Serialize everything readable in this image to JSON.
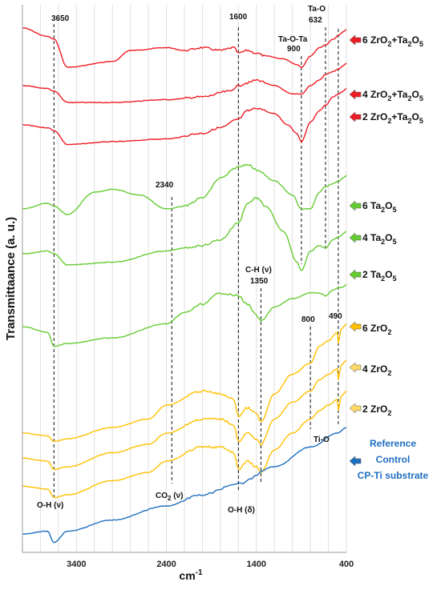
{
  "chart_data": {
    "type": "line",
    "title": "",
    "xlabel": "cm",
    "xlabel_sup": "-1",
    "ylabel": "Transmittaance (a. u.)",
    "xlim": [
      4000,
      400
    ],
    "xticks": [
      3400,
      2400,
      1400,
      400
    ],
    "grid": "vertical",
    "series": [
      {
        "name": "6 ZrO2+Ta2O5",
        "group": "zrta",
        "color": "#ee1c25",
        "x": [
          4000,
          3720,
          3650,
          3500,
          3000,
          2800,
          2400,
          2200,
          2000,
          1800,
          1650,
          1600,
          1500,
          1400,
          1300,
          1100,
          950,
          900,
          800,
          700,
          632,
          550,
          480,
          440,
          400
        ],
        "y": [
          4,
          10,
          12,
          32,
          28,
          20,
          18,
          20,
          18,
          20,
          18,
          22,
          20,
          22,
          24,
          26,
          30,
          32,
          24,
          18,
          16,
          12,
          9,
          7,
          5
        ]
      },
      {
        "name": "4 ZrO2+Ta2O5",
        "group": "zrta",
        "color": "#ee1c25",
        "x": [
          4000,
          3720,
          3650,
          3500,
          3000,
          2400,
          2000,
          1700,
          1600,
          1500,
          1400,
          1200,
          1000,
          900,
          800,
          700,
          632,
          550,
          480,
          440,
          400
        ],
        "y": [
          52,
          54,
          56,
          64,
          64,
          62,
          60,
          56,
          52,
          50,
          48,
          52,
          58,
          58,
          52,
          48,
          44,
          42,
          40,
          38,
          36
        ]
      },
      {
        "name": "2 ZrO2+Ta2O5",
        "group": "zrta",
        "color": "#ee1c25",
        "x": [
          4000,
          3720,
          3650,
          3500,
          3000,
          2400,
          2000,
          1800,
          1600,
          1500,
          1400,
          1200,
          1050,
          950,
          900,
          800,
          700,
          632,
          550,
          480,
          440,
          400
        ],
        "y": [
          80,
          82,
          84,
          94,
          92,
          90,
          86,
          82,
          76,
          70,
          68,
          72,
          80,
          86,
          92,
          78,
          70,
          66,
          60,
          58,
          56,
          54
        ]
      },
      {
        "name": "6 Ta2O5",
        "group": "ta",
        "color": "#66cc33",
        "x": [
          4000,
          3720,
          3650,
          3500,
          3200,
          3000,
          2700,
          2400,
          2200,
          2000,
          1800,
          1600,
          1500,
          1400,
          1200,
          1000,
          900,
          800,
          700,
          632,
          550,
          480,
          440,
          400
        ],
        "y": [
          140,
          136,
          138,
          144,
          128,
          126,
          130,
          140,
          138,
          132,
          118,
          110,
          108,
          112,
          120,
          130,
          140,
          140,
          128,
          124,
          122,
          120,
          118,
          116
        ]
      },
      {
        "name": "4 Ta2O5",
        "group": "ta",
        "color": "#66cc33",
        "x": [
          4000,
          3720,
          3650,
          3500,
          3000,
          2400,
          2200,
          2000,
          1800,
          1600,
          1500,
          1400,
          1300,
          1100,
          950,
          900,
          800,
          700,
          632,
          550,
          480,
          440,
          400
        ],
        "y": [
          172,
          170,
          172,
          180,
          178,
          170,
          168,
          166,
          162,
          150,
          136,
          132,
          138,
          156,
          178,
          184,
          170,
          166,
          168,
          162,
          160,
          158,
          156
        ]
      },
      {
        "name": "2 Ta2O5",
        "group": "ta",
        "color": "#66cc33",
        "x": [
          4000,
          3720,
          3650,
          3500,
          3000,
          2400,
          2200,
          2000,
          1800,
          1600,
          1500,
          1400,
          1350,
          1200,
          1000,
          800,
          700,
          632,
          550,
          480,
          440,
          400
        ],
        "y": [
          224,
          228,
          238,
          236,
          232,
          222,
          214,
          208,
          200,
          202,
          208,
          216,
          220,
          210,
          204,
          200,
          200,
          202,
          198,
          196,
          196,
          194
        ]
      },
      {
        "name": "6 ZrO2",
        "group": "zr",
        "color": "#ffc000",
        "x": [
          4000,
          3720,
          3650,
          3500,
          3000,
          2600,
          2400,
          2000,
          1800,
          1650,
          1600,
          1500,
          1400,
          1350,
          1200,
          1000,
          800,
          700,
          600,
          500,
          490,
          460,
          430,
          400
        ],
        "y": [
          300,
          302,
          306,
          304,
          296,
          290,
          280,
          270,
          272,
          276,
          288,
          282,
          286,
          292,
          272,
          258,
          250,
          238,
          234,
          228,
          236,
          226,
          224,
          222
        ]
      },
      {
        "name": "4 ZrO2",
        "group": "zr",
        "color": "#ffc000",
        "x": [
          4000,
          3720,
          3650,
          3500,
          3000,
          2600,
          2400,
          2000,
          1800,
          1650,
          1600,
          1500,
          1400,
          1350,
          1200,
          1000,
          800,
          700,
          600,
          500,
          490,
          460,
          430,
          400
        ],
        "y": [
          318,
          320,
          326,
          324,
          314,
          308,
          300,
          290,
          290,
          294,
          306,
          300,
          304,
          308,
          290,
          278,
          270,
          262,
          258,
          254,
          262,
          252,
          250,
          248
        ]
      },
      {
        "name": "2 ZrO2",
        "group": "zr",
        "color": "#ffc000",
        "x": [
          4000,
          3720,
          3650,
          3500,
          3000,
          2600,
          2400,
          2000,
          1800,
          1650,
          1600,
          1500,
          1400,
          1350,
          1200,
          1000,
          800,
          700,
          600,
          500,
          490,
          460,
          430,
          400
        ],
        "y": [
          338,
          340,
          346,
          344,
          334,
          328,
          320,
          310,
          310,
          314,
          326,
          320,
          324,
          328,
          312,
          300,
          290,
          284,
          280,
          276,
          284,
          274,
          272,
          270
        ]
      },
      {
        "name": "Reference Control CP-Ti substrate",
        "group": "ref",
        "color": "#1f6fbf",
        "x": [
          4000,
          3720,
          3650,
          3500,
          3000,
          2400,
          2000,
          1600,
          1200,
          800,
          500,
          400
        ],
        "y": [
          372,
          370,
          378,
          370,
          362,
          352,
          344,
          336,
          324,
          310,
          300,
          296
        ]
      }
    ],
    "vlines": [
      3650,
      2340,
      1600,
      1350,
      900,
      800,
      632,
      490
    ],
    "annotations": {
      "a3650": "3650",
      "a1600": "1600",
      "ataota": "Ta-O-Ta",
      "a900": "900",
      "atao": "Ta-O",
      "a632": "632",
      "a2340": "2340",
      "ach": "C-H (ν)",
      "a1350": "1350",
      "a800": "800",
      "a490": "490",
      "atio": "Ti-O",
      "aohv": "O-H (ν)",
      "aco2_main": "CO",
      "aco2_sub": "2",
      "aco2_tail": " (ν)",
      "aohd": "O-H (δ)"
    }
  },
  "legend": {
    "zrta_6": {
      "prefix": "6 ZrO",
      "s1": "2",
      "mid": "+Ta",
      "s2": "2",
      "tail": "O",
      "s3": "5"
    },
    "zrta_4": {
      "prefix": "4 ZrO",
      "s1": "2",
      "mid": "+Ta",
      "s2": "2",
      "tail": "O",
      "s3": "5"
    },
    "zrta_2": {
      "prefix": "2 ZrO",
      "s1": "2",
      "mid": "+Ta",
      "s2": "2",
      "tail": "O",
      "s3": "5"
    },
    "ta_6": {
      "prefix": "6 Ta",
      "s1": "2",
      "tail": "O",
      "s2": "5"
    },
    "ta_4": {
      "prefix": "4 Ta",
      "s1": "2",
      "tail": "O",
      "s2": "5"
    },
    "ta_2": {
      "prefix": "2 Ta",
      "s1": "2",
      "tail": "O",
      "s2": "5"
    },
    "zr_6": {
      "prefix": "6 ZrO",
      "s1": "2"
    },
    "zr_4": {
      "prefix": "4 ZrO",
      "s1": "2"
    },
    "zr_2": {
      "prefix": "2 ZrO",
      "s1": "2"
    },
    "ref_1": "Reference",
    "ref_2": "Control",
    "ref_3": "CP-Ti substrate"
  },
  "colors": {
    "red": "#ee1c25",
    "green": "#66cc33",
    "yellow": "#ffc000",
    "blue": "#1f6fbf",
    "yellow_arrow": "#ffd966"
  }
}
